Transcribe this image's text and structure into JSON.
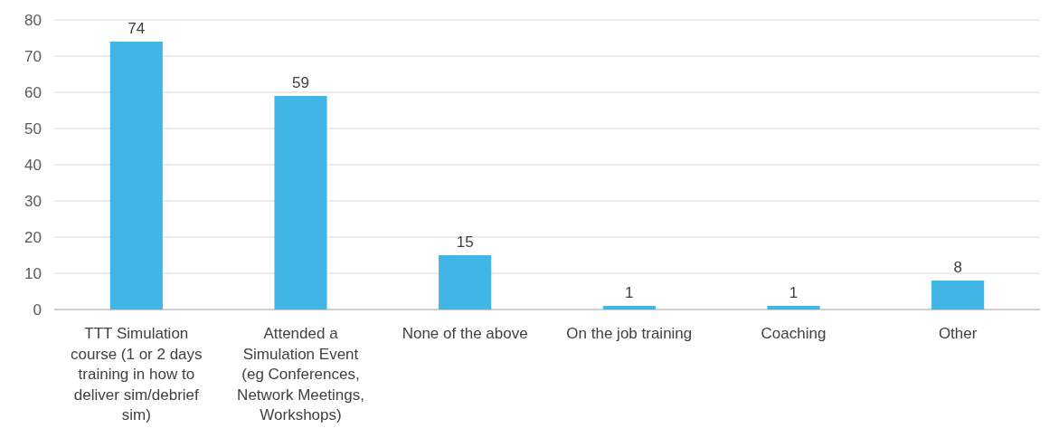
{
  "chart_data": {
    "type": "bar",
    "categories": [
      "TTT Simulation course (1 or 2 days training in how to deliver sim/debrief sim)",
      "Attended a Simulation Event (eg Conferences, Network Meetings, Workshops)",
      "None of the above",
      "On the job training",
      "Coaching",
      "Other"
    ],
    "values": [
      74,
      59,
      15,
      1,
      1,
      8
    ],
    "color": "#41b6e6",
    "ylim": [
      0,
      80
    ],
    "yticks": [
      0,
      10,
      20,
      30,
      40,
      50,
      60,
      70,
      80
    ],
    "grid": "y",
    "data_labels": true
  }
}
